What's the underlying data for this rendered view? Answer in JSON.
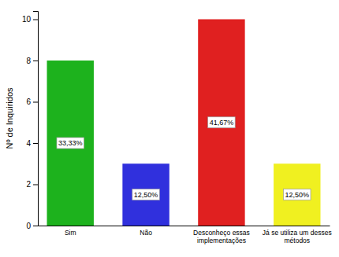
{
  "chart_data": {
    "type": "bar",
    "categories": [
      "Sim",
      "Não",
      "Desconheço essas\nimplementações",
      "Já se utiliza um desses\nmétodos"
    ],
    "values": [
      8,
      3,
      10,
      3
    ],
    "colors": [
      "#1db21d",
      "#3030dd",
      "#e02020",
      "#f0f020"
    ],
    "annotations": [
      "33,33%",
      "12,50%",
      "41,67%",
      "12,50%"
    ],
    "ylabel": "Nº de Inquiridos",
    "ylim": [
      0,
      10.4
    ],
    "yticks": [
      0,
      2,
      4,
      6,
      8,
      10
    ],
    "grid": false
  }
}
